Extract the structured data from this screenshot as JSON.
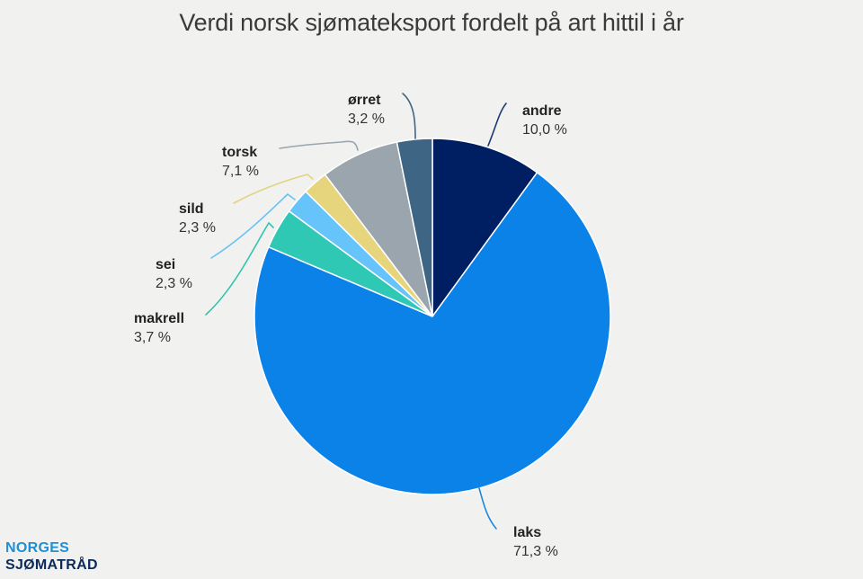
{
  "chart_data": {
    "type": "pie",
    "title": "Verdi norsk sjømateksport fordelt på art hittil i år",
    "start_angle_deg": 0,
    "direction": "clockwise",
    "center": [
      481,
      352
    ],
    "radius": 198,
    "slices": [
      {
        "label": "andre",
        "value": 10.0,
        "display": "10,0 %",
        "color": "#001f63"
      },
      {
        "label": "laks",
        "value": 71.3,
        "display": "71,3 %",
        "color": "#0a82e8"
      },
      {
        "label": "makrell",
        "value": 3.7,
        "display": "3,7 %",
        "color": "#2fc8b4"
      },
      {
        "label": "sei",
        "value": 2.3,
        "display": "2,3 %",
        "color": "#66c4fb"
      },
      {
        "label": "sild",
        "value": 2.3,
        "display": "2,3 %",
        "color": "#e6d57d"
      },
      {
        "label": "torsk",
        "value": 7.1,
        "display": "7,1 %",
        "color": "#9ba5ae"
      },
      {
        "label": "ørret",
        "value": 3.2,
        "display": "3,2 %",
        "color": "#3f6585"
      }
    ],
    "legend": "none (direct labels with leader lines)"
  },
  "title": "Verdi norsk sjømateksport fordelt på art hittil i år",
  "labels": {
    "andre": {
      "name": "andre",
      "val": "10,0 %"
    },
    "laks": {
      "name": "laks",
      "val": "71,3 %"
    },
    "makrell": {
      "name": "makrell",
      "val": "3,7 %"
    },
    "sei": {
      "name": "sei",
      "val": "2,3 %"
    },
    "sild": {
      "name": "sild",
      "val": "2,3 %"
    },
    "torsk": {
      "name": "torsk",
      "val": "7,1 %"
    },
    "orret": {
      "name": "ørret",
      "val": "3,2 %"
    }
  },
  "logo": {
    "line1": "NORGES",
    "line2": "SJØMATRÅD"
  }
}
